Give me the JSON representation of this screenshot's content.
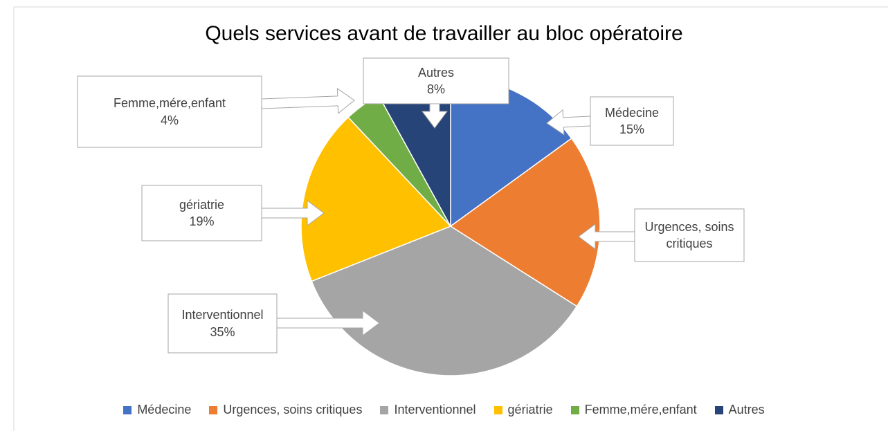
{
  "chart_data": {
    "type": "pie",
    "title": "Quels services avant de travailler au bloc opératoire",
    "categories": [
      "Médecine",
      "Urgences, soins critiques",
      "Interventionnel",
      "gériatrie",
      "Femme,mére,enfant",
      "Autres"
    ],
    "values": [
      15,
      19,
      35,
      19,
      4,
      8
    ],
    "value_labels": [
      "15%",
      null,
      "35%",
      "19%",
      "4%",
      "8%"
    ],
    "colors": [
      "#4472c4",
      "#ed7d31",
      "#a5a5a5",
      "#ffc000",
      "#70ad47",
      "#264478"
    ],
    "legend": "bottom"
  }
}
